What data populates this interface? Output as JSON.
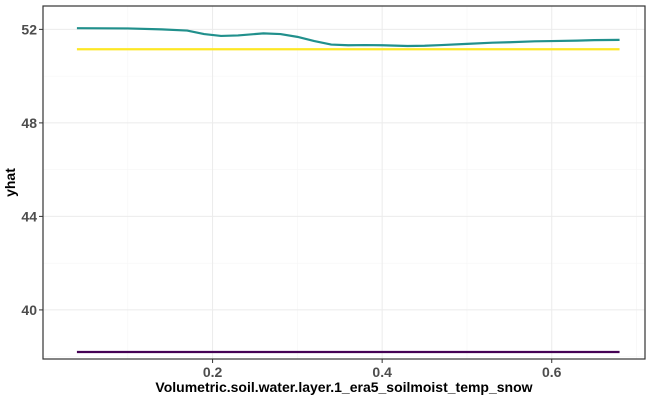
{
  "chart_data": {
    "type": "line",
    "title": "",
    "xlabel": "Volumetric.soil.water.layer.1_era5_soilmoist_temp_snow",
    "ylabel": "yhat",
    "xlim": [
      0.0,
      0.71
    ],
    "ylim": [
      37.9,
      53.0
    ],
    "xticks": [
      0.2,
      0.4,
      0.6
    ],
    "xtick_labels": [
      "0.2",
      "0.4",
      "0.6"
    ],
    "yticks": [
      40,
      44,
      48,
      52
    ],
    "ytick_labels": [
      "40",
      "44",
      "48",
      "52"
    ],
    "grid": true,
    "legend": "none",
    "series": [
      {
        "color": "#440154",
        "x": [
          0.04,
          0.68
        ],
        "y": [
          38.2,
          38.2
        ]
      },
      {
        "color": "#21908c",
        "x": [
          0.04,
          0.1,
          0.14,
          0.17,
          0.19,
          0.21,
          0.23,
          0.26,
          0.28,
          0.3,
          0.32,
          0.34,
          0.36,
          0.38,
          0.4,
          0.43,
          0.45,
          0.47,
          0.5,
          0.53,
          0.55,
          0.58,
          0.6,
          0.63,
          0.65,
          0.68
        ],
        "y": [
          52.05,
          52.04,
          52.0,
          51.95,
          51.8,
          51.72,
          51.74,
          51.83,
          51.8,
          51.68,
          51.5,
          51.35,
          51.32,
          51.33,
          51.32,
          51.29,
          51.3,
          51.33,
          51.38,
          51.43,
          51.45,
          51.49,
          51.5,
          51.52,
          51.54,
          51.55
        ]
      },
      {
        "color": "#fde725",
        "x": [
          0.04,
          0.68
        ],
        "y": [
          51.15,
          51.15
        ]
      }
    ]
  }
}
